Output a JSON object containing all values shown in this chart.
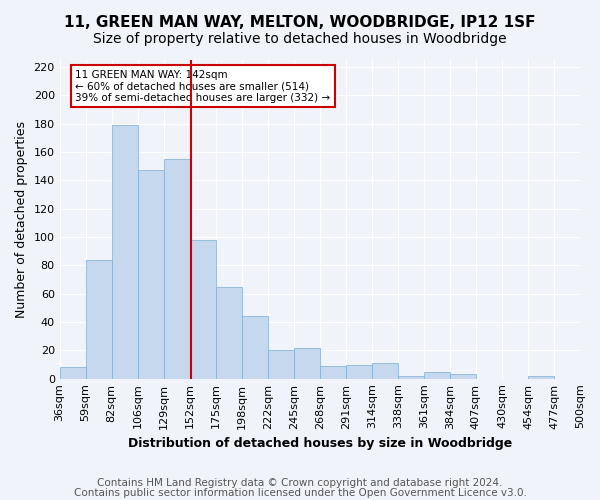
{
  "title": "11, GREEN MAN WAY, MELTON, WOODBRIDGE, IP12 1SF",
  "subtitle": "Size of property relative to detached houses in Woodbridge",
  "xlabel": "Distribution of detached houses by size in Woodbridge",
  "ylabel": "Number of detached properties",
  "bins": [
    "36sqm",
    "59sqm",
    "82sqm",
    "106sqm",
    "129sqm",
    "152sqm",
    "175sqm",
    "198sqm",
    "222sqm",
    "245sqm",
    "268sqm",
    "291sqm",
    "314sqm",
    "338sqm",
    "361sqm",
    "384sqm",
    "407sqm",
    "430sqm",
    "454sqm",
    "477sqm",
    "500sqm"
  ],
  "values": [
    8,
    84,
    179,
    147,
    155,
    98,
    65,
    44,
    20,
    22,
    9,
    10,
    11,
    2,
    5,
    3,
    0,
    0,
    2,
    0
  ],
  "bar_color": "#c5d8ed",
  "bar_edge_color": "#7bafd4",
  "annotation_text": "11 GREEN MAN WAY: 142sqm\n← 60% of detached houses are smaller (514)\n39% of semi-detached houses are larger (332) →",
  "annotation_box_color": "#ffffff",
  "annotation_box_edge_color": "#cc0000",
  "vline_color": "#cc0000",
  "vline_bin_index": 4.565,
  "ylim": [
    0,
    225
  ],
  "yticks": [
    0,
    20,
    40,
    60,
    80,
    100,
    120,
    140,
    160,
    180,
    200,
    220
  ],
  "footer1": "Contains HM Land Registry data © Crown copyright and database right 2024.",
  "footer2": "Contains public sector information licensed under the Open Government Licence v3.0.",
  "background_color": "#f0f4fa",
  "grid_color": "#ffffff",
  "title_fontsize": 11,
  "subtitle_fontsize": 10,
  "axis_label_fontsize": 9,
  "tick_fontsize": 8,
  "annotation_fontsize": 7.5,
  "footer_fontsize": 7.5
}
